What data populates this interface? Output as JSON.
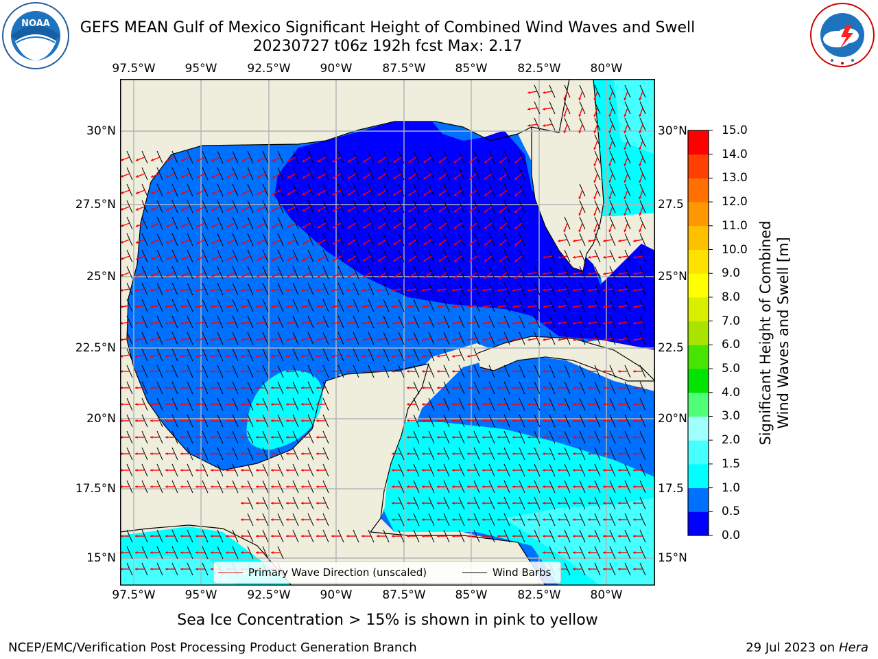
{
  "header": {
    "title_line1": "GEFS MEAN Gulf of Mexico Significant Height of Combined Wind Waves and Swell",
    "title_line2": "20230727 t06z 192h fcst   Max: 2.17"
  },
  "logos": {
    "left": {
      "name": "noaa-logo",
      "text": "NOAA",
      "ring_text": "NATIONAL OCEANIC AND ATMOSPHERIC ADMINISTRATION · U.S. DEPARTMENT OF COMMERCE"
    },
    "right": {
      "name": "nws-logo",
      "ring_text": "NATIONAL WEATHER SERVICE"
    }
  },
  "map": {
    "lon_labels": [
      "97.5°W",
      "95°W",
      "92.5°W",
      "90°W",
      "87.5°W",
      "85°W",
      "82.5°W",
      "80°W"
    ],
    "lat_labels_left": [
      "30°N",
      "27.5°N",
      "25°N",
      "22.5°N",
      "20°N",
      "17.5°N",
      "15°N"
    ],
    "lat_labels_right": [
      "30°N",
      "27.5",
      "25°N",
      "22.5",
      "20°N",
      "17.5",
      "15°N"
    ],
    "lon_values": [
      -97.5,
      -95,
      -92.5,
      -90,
      -87.5,
      -85,
      -82.5,
      -80
    ],
    "lat_values": [
      30,
      27.5,
      25,
      22.5,
      20,
      17.5,
      15
    ],
    "extent": {
      "lon_min": -98,
      "lon_max": -78.2,
      "lat_min": 14,
      "lat_max": 31.7
    },
    "land_color": "#efeddc",
    "grid_color": "#b3b3b3"
  },
  "legend": {
    "wave_label": "Primary Wave Direction (unscaled)",
    "wind_label": "Wind Barbs",
    "wave_color": "#ff0000",
    "wind_color": "#000000"
  },
  "colorbar": {
    "label_line1": "Significant Height of Combined",
    "label_line2": "Wind Waves and Swell [m]",
    "ticks": [
      "15.0",
      "14.0",
      "13.0",
      "12.0",
      "11.0",
      "10.0",
      "9.0",
      "8.0",
      "7.0",
      "6.0",
      "5.0",
      "4.0",
      "3.0",
      "2.0",
      "1.5",
      "1.0",
      "0.5",
      "0.0"
    ],
    "bounds": [
      0,
      0.5,
      1,
      1.5,
      2,
      3,
      4,
      5,
      6,
      7,
      8,
      9,
      10,
      11,
      12,
      13,
      14,
      15
    ],
    "colors": [
      "#0000ff",
      "#0070ff",
      "#00ffff",
      "#46ffff",
      "#a0ffff",
      "#50ff78",
      "#00e400",
      "#46e400",
      "#a8e400",
      "#d8f000",
      "#ffff00",
      "#ffe100",
      "#ffc000",
      "#ff9800",
      "#ff7000",
      "#ff4000",
      "#ff0000"
    ]
  },
  "chart_data": {
    "type": "heatmap",
    "variable": "Significant Height of Combined Wind Waves and Swell [m]",
    "max": 2.17,
    "regions": [
      {
        "region": "northeastern Gulf / central Gulf band",
        "range_m": [
          0.0,
          0.5
        ]
      },
      {
        "region": "western and southern Gulf",
        "range_m": [
          0.5,
          1.0
        ]
      },
      {
        "region": "Bay of Campeche",
        "range_m": [
          1.0,
          1.5
        ]
      },
      {
        "region": "western Caribbean",
        "range_m": [
          1.0,
          1.5
        ]
      },
      {
        "region": "Atlantic east of Florida",
        "range_m": [
          1.0,
          2.0
        ]
      },
      {
        "region": "eastern Pacific off southern Mexico",
        "range_m": [
          1.0,
          2.0
        ]
      }
    ]
  },
  "footer": {
    "subtitle": "Sea Ice Concentration > 15% is shown in pink to yellow",
    "left": "NCEP/EMC/Verification Post Processing Product Generation Branch",
    "right_date": "29 Jul 2023 on ",
    "right_host": "Hera"
  }
}
